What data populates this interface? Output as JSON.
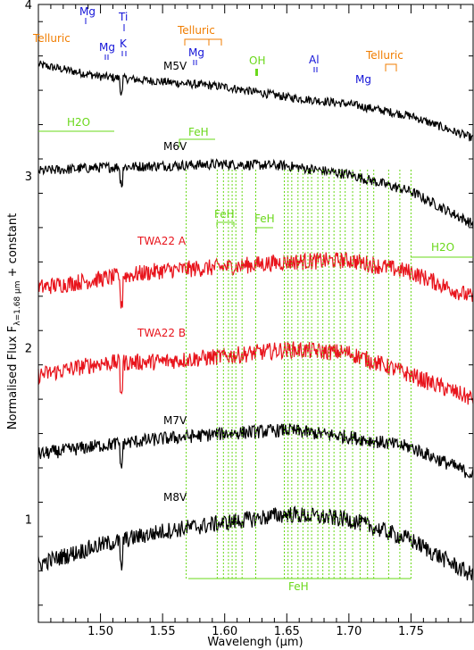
{
  "chart_data": {
    "type": "line",
    "title": "",
    "xlabel": "Wavelengh (µm)",
    "ylabel": "Normalised Flux F",
    "ylabel_sub": "λ=1.68 µm",
    "ylabel_suffix": " + constant",
    "xlim": [
      1.45,
      1.8
    ],
    "ylim": [
      0.4,
      4.0
    ],
    "x_ticks": [
      1.5,
      1.55,
      1.6,
      1.65,
      1.7,
      1.75
    ],
    "x_tick_labels": [
      "1.50",
      "1.55",
      "1.60",
      "1.65",
      "1.70",
      "1.75"
    ],
    "y_ticks": [
      1,
      2,
      3,
      4
    ],
    "y_tick_labels": [
      "1",
      "2",
      "3",
      "4"
    ],
    "colors": {
      "black": "#000000",
      "red": "#e8141c",
      "orange": "#f07d00",
      "blue": "#1414d8",
      "green": "#6ad81a"
    },
    "series": [
      {
        "name": "M5V",
        "color": "#000000",
        "noise": 0.025,
        "x": [
          1.45,
          1.5,
          1.55,
          1.6,
          1.65,
          1.7,
          1.75,
          1.8
        ],
        "y": [
          3.65,
          3.58,
          3.55,
          3.52,
          3.46,
          3.42,
          3.35,
          3.22
        ]
      },
      {
        "name": "M6V",
        "color": "#000000",
        "noise": 0.03,
        "x": [
          1.45,
          1.5,
          1.55,
          1.6,
          1.65,
          1.7,
          1.75,
          1.8
        ],
        "y": [
          3.03,
          3.05,
          3.06,
          3.07,
          3.06,
          3.01,
          2.91,
          2.72
        ]
      },
      {
        "name": "TWA22 A",
        "color": "#e8141c",
        "noise": 0.05,
        "x": [
          1.45,
          1.5,
          1.55,
          1.6,
          1.65,
          1.7,
          1.75,
          1.8
        ],
        "y": [
          2.35,
          2.4,
          2.45,
          2.47,
          2.5,
          2.51,
          2.44,
          2.29
        ]
      },
      {
        "name": "TWA22 B",
        "color": "#e8141c",
        "noise": 0.05,
        "x": [
          1.45,
          1.5,
          1.55,
          1.6,
          1.65,
          1.7,
          1.75,
          1.8
        ],
        "y": [
          1.84,
          1.91,
          1.92,
          1.95,
          1.99,
          1.97,
          1.84,
          1.7
        ]
      },
      {
        "name": "M7V",
        "color": "#000000",
        "noise": 0.04,
        "x": [
          1.45,
          1.5,
          1.55,
          1.6,
          1.65,
          1.7,
          1.75,
          1.8
        ],
        "y": [
          1.38,
          1.43,
          1.47,
          1.5,
          1.52,
          1.48,
          1.42,
          1.26
        ]
      },
      {
        "name": "M8V",
        "color": "#000000",
        "noise": 0.05,
        "x": [
          1.45,
          1.5,
          1.55,
          1.6,
          1.65,
          1.7,
          1.75,
          1.8
        ],
        "y": [
          0.74,
          0.85,
          0.93,
          0.98,
          1.03,
          1.0,
          0.88,
          0.67
        ]
      }
    ],
    "feh_lines": [
      1.569,
      1.594,
      1.599,
      1.603,
      1.606,
      1.609,
      1.614,
      1.625,
      1.648,
      1.651,
      1.654,
      1.659,
      1.663,
      1.667,
      1.67,
      1.675,
      1.679,
      1.684,
      1.688,
      1.693,
      1.697,
      1.703,
      1.709,
      1.715,
      1.72,
      1.732,
      1.741,
      1.75
    ],
    "labels": {
      "telluric": "Telluric",
      "mg": "Mg",
      "ti": "Ti",
      "k": "K",
      "oh": "OH",
      "al": "Al",
      "h2o": "H2O",
      "feh": "FeH"
    }
  }
}
